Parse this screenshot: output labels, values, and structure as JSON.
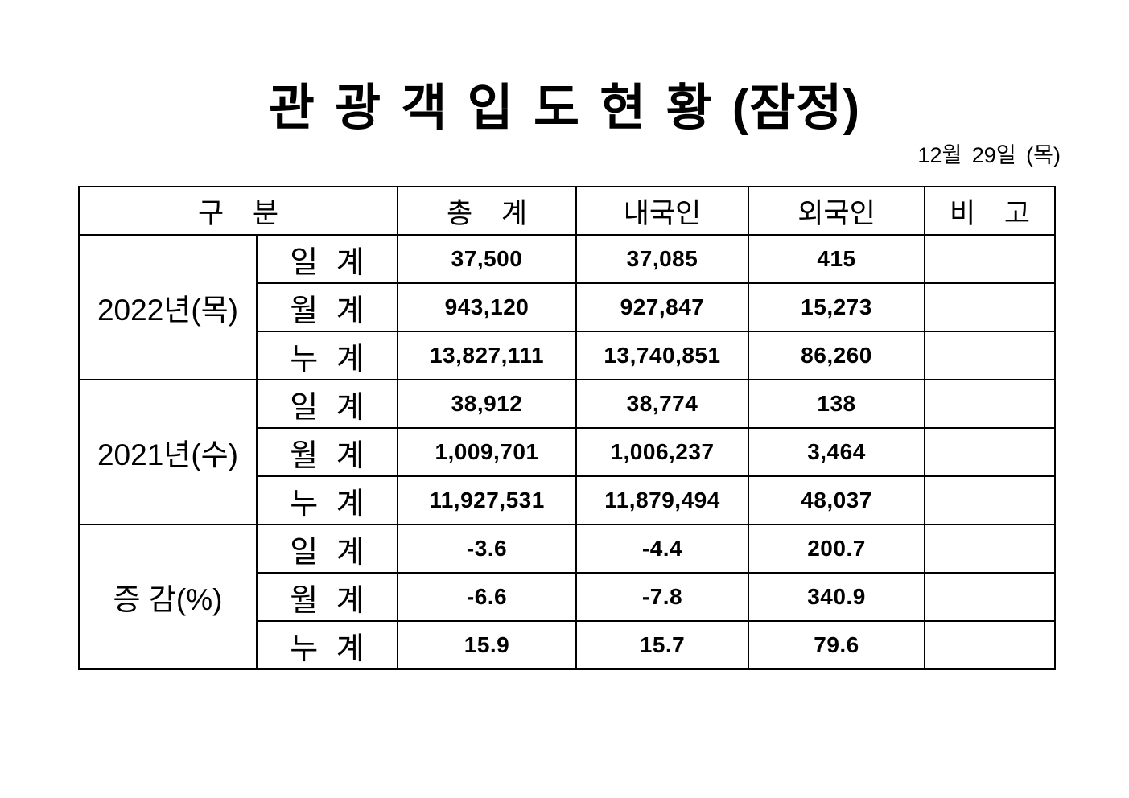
{
  "page": {
    "title": "관 광 객 입 도 현 황 (잠정)",
    "date": "12월 29일 (목)"
  },
  "table": {
    "headers": {
      "category": "구 분",
      "total": "총 계",
      "domestic": "내국인",
      "foreign": "외국인",
      "note": "비 고"
    },
    "sections": [
      {
        "group": "2022년(목)",
        "rows": [
          {
            "label": "일 계",
            "total": "37,500",
            "domestic": "37,085",
            "foreign": "415",
            "note": ""
          },
          {
            "label": "월 계",
            "total": "943,120",
            "domestic": "927,847",
            "foreign": "15,273",
            "note": ""
          },
          {
            "label": "누 계",
            "total": "13,827,111",
            "domestic": "13,740,851",
            "foreign": "86,260",
            "note": ""
          }
        ]
      },
      {
        "group": "2021년(수)",
        "rows": [
          {
            "label": "일 계",
            "total": "38,912",
            "domestic": "38,774",
            "foreign": "138",
            "note": ""
          },
          {
            "label": "월 계",
            "total": "1,009,701",
            "domestic": "1,006,237",
            "foreign": "3,464",
            "note": ""
          },
          {
            "label": "누 계",
            "total": "11,927,531",
            "domestic": "11,879,494",
            "foreign": "48,037",
            "note": ""
          }
        ]
      },
      {
        "group": "증 감(%)",
        "rows": [
          {
            "label": "일 계",
            "total": "-3.6",
            "domestic": "-4.4",
            "foreign": "200.7",
            "note": ""
          },
          {
            "label": "월 계",
            "total": "-6.6",
            "domestic": "-7.8",
            "foreign": "340.9",
            "note": ""
          },
          {
            "label": "누 계",
            "total": "15.9",
            "domestic": "15.7",
            "foreign": "79.6",
            "note": ""
          }
        ]
      }
    ]
  },
  "colors": {
    "text": "#000000",
    "border": "#000000",
    "background": "#ffffff"
  }
}
